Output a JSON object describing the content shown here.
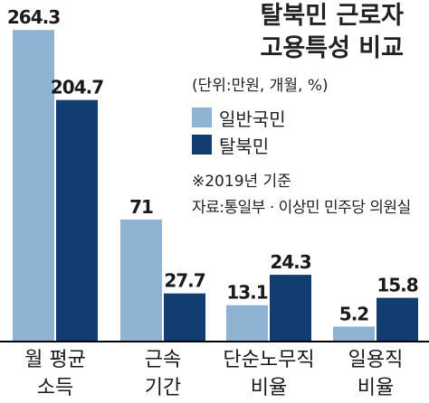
{
  "title_line1": "탈북민 근로자",
  "title_line2": "고용특성 비교",
  "unit": "(단위:만원, 개월, %)",
  "note": "※2019년 기준",
  "source": "자료:통일부 · 이상민 민주당 의원실",
  "colors": {
    "general": "#8fb4d3",
    "defector": "#123d71",
    "axis": "#000000"
  },
  "chart_data": {
    "type": "bar",
    "categories": [
      [
        "월 평균",
        "소득"
      ],
      [
        "근속",
        "기간"
      ],
      [
        "단순노무직",
        "비율"
      ],
      [
        "일용직",
        "비율"
      ]
    ],
    "series": [
      {
        "name": "일반국민",
        "values": [
          264.3,
          71,
          13.1,
          5.2
        ]
      },
      {
        "name": "탈북민",
        "values": [
          204.7,
          27.7,
          24.3,
          15.8
        ]
      }
    ],
    "value_labels": [
      [
        "264.3",
        "71",
        "13.1",
        "5.2"
      ],
      [
        "204.7",
        "27.7",
        "24.3",
        "15.8"
      ]
    ]
  }
}
